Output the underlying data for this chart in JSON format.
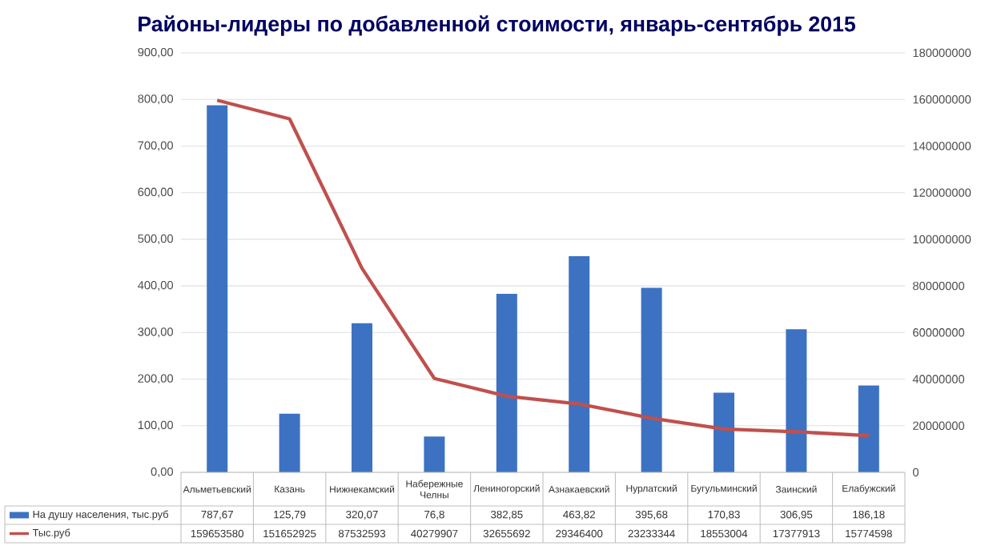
{
  "chart_data": {
    "type": "bar",
    "title": "Районы-лидеры по добавленной стоимости, январь-сентябрь 2015",
    "categories": [
      "Альметьевский",
      "Казань",
      "Нижнекамский",
      "Набережные Челны",
      "Лениногорский",
      "Азнакаевский",
      "Нурлатский",
      "Бугульминский",
      "Заинский",
      "Елабужский"
    ],
    "series": [
      {
        "name": "На душу населения, тыс.руб",
        "color": "#3d72c2",
        "values": [
          787.67,
          125.79,
          320.07,
          76.8,
          382.85,
          463.82,
          395.68,
          170.83,
          306.95,
          186.18
        ],
        "value_labels": [
          "787,67",
          "125,79",
          "320,07",
          "76,8",
          "382,85",
          "463,82",
          "395,68",
          "170,83",
          "306,95",
          "186,18"
        ]
      },
      {
        "name": "Тыс.руб",
        "type": "line",
        "axis": "y2",
        "color": "#c0504d",
        "values": [
          159653580,
          151652925,
          87532593,
          40279907,
          32655692,
          29346400,
          23233344,
          18553004,
          17377913,
          15774598
        ],
        "value_labels": [
          "159653580",
          "151652925",
          "87532593",
          "40279907",
          "32655692",
          "29346400",
          "23233344",
          "18553004",
          "17377913",
          "15774598"
        ]
      }
    ],
    "ylim": [
      0,
      900
    ],
    "yticks": [
      {
        "value": 0,
        "label": "0,00"
      },
      {
        "value": 100,
        "label": "100,00"
      },
      {
        "value": 200,
        "label": "200,00"
      },
      {
        "value": 300,
        "label": "300,00"
      },
      {
        "value": 400,
        "label": "400,00"
      },
      {
        "value": 500,
        "label": "500,00"
      },
      {
        "value": 600,
        "label": "600,00"
      },
      {
        "value": 700,
        "label": "700,00"
      },
      {
        "value": 800,
        "label": "800,00"
      },
      {
        "value": 900,
        "label": "900,00"
      }
    ],
    "y2lim": [
      0,
      180000000
    ],
    "y2ticks": [
      0,
      20000000,
      40000000,
      60000000,
      80000000,
      100000000,
      120000000,
      140000000,
      160000000,
      180000000
    ],
    "grid": "y",
    "legend": "bottom",
    "marker": "none",
    "line_style": "solid"
  }
}
